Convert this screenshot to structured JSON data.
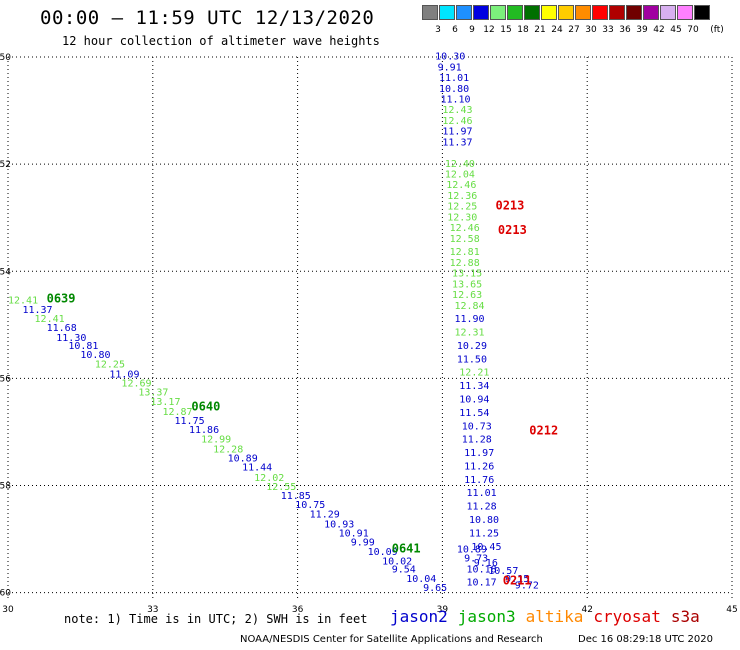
{
  "header": {
    "title": "00:00 – 11:59 UTC 12/13/2020",
    "subtitle": "12 hour collection of altimeter wave heights"
  },
  "color_scale": {
    "unit_label": "(ft)",
    "bins": [
      {
        "label": "3",
        "color": "#808080"
      },
      {
        "label": "6",
        "color": "#00e5ff"
      },
      {
        "label": "9",
        "color": "#1e90ff"
      },
      {
        "label": "12",
        "color": "#0000e0"
      },
      {
        "label": "15",
        "color": "#7cf07c"
      },
      {
        "label": "18",
        "color": "#22bb22"
      },
      {
        "label": "21",
        "color": "#007000"
      },
      {
        "label": "24",
        "color": "#ffff00"
      },
      {
        "label": "27",
        "color": "#ffcc00"
      },
      {
        "label": "30",
        "color": "#ff8c00"
      },
      {
        "label": "33",
        "color": "#ff0000"
      },
      {
        "label": "36",
        "color": "#b00000"
      },
      {
        "label": "39",
        "color": "#700000"
      },
      {
        "label": "42",
        "color": "#a000a0"
      },
      {
        "label": "45",
        "color": "#d8b0f0"
      },
      {
        "label": "70",
        "color": "#ff80ff"
      },
      {
        "label": "",
        "color": "#000000"
      }
    ]
  },
  "chart_data": {
    "type": "scatter",
    "title": "00:00 – 11:59 UTC 12/13/2020",
    "xlabel": "",
    "ylabel": "",
    "xlim": [
      30,
      45
    ],
    "ylim": [
      -60.1,
      -50
    ],
    "x_ticks": [
      30,
      33,
      36,
      39,
      42,
      45
    ],
    "y_ticks": [
      -50,
      -52,
      -54,
      -56,
      -58,
      -60
    ],
    "x_tick_labels": [
      "30",
      "33",
      "36",
      "39",
      "42",
      "45"
    ],
    "y_tick_labels": [
      "-50",
      "-52",
      "-54",
      "-56",
      "-58",
      "-60"
    ],
    "grid": true,
    "colors": {
      "jason2": "#0000cc",
      "jason3": "#00aa00",
      "altika": "#ff8800",
      "cryosat": "#dd0000",
      "s3a": "#aa0000",
      "j3light": "#66dd44",
      "j3time": "#008800"
    },
    "series": [
      {
        "name": "jason2",
        "points": [
          {
            "lon": 38.85,
            "lat": -50.05,
            "value": "10.30",
            "c": "jason2"
          },
          {
            "lon": 38.9,
            "lat": -50.25,
            "value": "9.91",
            "c": "jason2"
          },
          {
            "lon": 38.93,
            "lat": -50.45,
            "value": "11.01",
            "c": "jason2"
          },
          {
            "lon": 38.93,
            "lat": -50.65,
            "value": "10.80",
            "c": "jason2"
          },
          {
            "lon": 38.96,
            "lat": -50.85,
            "value": "11.10",
            "c": "jason2"
          },
          {
            "lon": 39.0,
            "lat": -51.05,
            "value": "12.43",
            "c": "j3light"
          },
          {
            "lon": 39.0,
            "lat": -51.25,
            "value": "12.46",
            "c": "j3light"
          },
          {
            "lon": 39.0,
            "lat": -51.45,
            "value": "11.97",
            "c": "jason2"
          },
          {
            "lon": 39.0,
            "lat": -51.65,
            "value": "11.37",
            "c": "jason2"
          },
          {
            "lon": 39.05,
            "lat": -52.05,
            "value": "12.40",
            "c": "j3light"
          },
          {
            "lon": 39.05,
            "lat": -52.25,
            "value": "12.04",
            "c": "j3light"
          },
          {
            "lon": 39.08,
            "lat": -52.45,
            "value": "12.46",
            "c": "j3light"
          },
          {
            "lon": 39.1,
            "lat": -52.65,
            "value": "12.36",
            "c": "j3light"
          },
          {
            "lon": 39.1,
            "lat": -52.85,
            "value": "12.25",
            "c": "j3light"
          },
          {
            "lon": 39.1,
            "lat": -53.05,
            "value": "12.30",
            "c": "j3light"
          },
          {
            "lon": 39.15,
            "lat": -53.25,
            "value": "12.46",
            "c": "j3light"
          },
          {
            "lon": 39.15,
            "lat": -53.45,
            "value": "12.58",
            "c": "j3light"
          },
          {
            "lon": 39.15,
            "lat": -53.7,
            "value": "12.81",
            "c": "j3light"
          },
          {
            "lon": 39.15,
            "lat": -53.9,
            "value": "12.88",
            "c": "j3light"
          },
          {
            "lon": 39.2,
            "lat": -54.1,
            "value": "13.15",
            "c": "j3light"
          },
          {
            "lon": 39.2,
            "lat": -54.3,
            "value": "13.65",
            "c": "j3light"
          },
          {
            "lon": 39.2,
            "lat": -54.5,
            "value": "12.63",
            "c": "j3light"
          },
          {
            "lon": 39.25,
            "lat": -54.7,
            "value": "12.84",
            "c": "j3light"
          },
          {
            "lon": 39.25,
            "lat": -54.95,
            "value": "11.90",
            "c": "jason2"
          },
          {
            "lon": 39.25,
            "lat": -55.2,
            "value": "12.31",
            "c": "j3light"
          },
          {
            "lon": 39.3,
            "lat": -55.45,
            "value": "10.29",
            "c": "jason2"
          },
          {
            "lon": 39.3,
            "lat": -55.7,
            "value": "11.50",
            "c": "jason2"
          },
          {
            "lon": 39.35,
            "lat": -55.95,
            "value": "12.21",
            "c": "j3light"
          },
          {
            "lon": 39.35,
            "lat": -56.2,
            "value": "11.34",
            "c": "jason2"
          },
          {
            "lon": 39.35,
            "lat": -56.45,
            "value": "10.94",
            "c": "jason2"
          },
          {
            "lon": 39.35,
            "lat": -56.7,
            "value": "11.54",
            "c": "jason2"
          },
          {
            "lon": 39.4,
            "lat": -56.95,
            "value": "10.73",
            "c": "jason2"
          },
          {
            "lon": 39.4,
            "lat": -57.2,
            "value": "11.28",
            "c": "jason2"
          },
          {
            "lon": 39.45,
            "lat": -57.45,
            "value": "11.97",
            "c": "jason2"
          },
          {
            "lon": 39.45,
            "lat": -57.7,
            "value": "11.26",
            "c": "jason2"
          },
          {
            "lon": 39.45,
            "lat": -57.95,
            "value": "11.76",
            "c": "jason2"
          },
          {
            "lon": 39.5,
            "lat": -58.2,
            "value": "11.01",
            "c": "jason2"
          },
          {
            "lon": 39.5,
            "lat": -58.45,
            "value": "11.28",
            "c": "jason2"
          },
          {
            "lon": 39.55,
            "lat": -58.7,
            "value": "10.80",
            "c": "jason2"
          },
          {
            "lon": 39.55,
            "lat": -58.95,
            "value": "11.25",
            "c": "jason2"
          },
          {
            "lon": 39.6,
            "lat": -59.2,
            "value": "10.45",
            "c": "jason2"
          },
          {
            "lon": 39.3,
            "lat": -59.25,
            "value": "10.89",
            "c": "jason2"
          },
          {
            "lon": 39.45,
            "lat": -59.42,
            "value": "9.73",
            "c": "jason2"
          },
          {
            "lon": 39.65,
            "lat": -59.5,
            "value": "9.16",
            "c": "jason2"
          },
          {
            "lon": 39.5,
            "lat": -59.62,
            "value": "10.18",
            "c": "jason2"
          },
          {
            "lon": 39.95,
            "lat": -59.65,
            "value": "10.57",
            "c": "jason2"
          },
          {
            "lon": 40.3,
            "lat": -59.8,
            "value": "9.15",
            "c": "jason2"
          },
          {
            "lon": 39.5,
            "lat": -59.87,
            "value": "10.17",
            "c": "jason2"
          },
          {
            "lon": 40.5,
            "lat": -59.92,
            "value": "9.72",
            "c": "jason2"
          },
          {
            "lon": 30.0,
            "lat": -54.6,
            "value": "12.41",
            "c": "j3light"
          },
          {
            "lon": 30.3,
            "lat": -54.78,
            "value": "11.37",
            "c": "jason2"
          },
          {
            "lon": 30.55,
            "lat": -54.95,
            "value": "12.41",
            "c": "j3light"
          },
          {
            "lon": 30.8,
            "lat": -55.12,
            "value": "11.68",
            "c": "jason2"
          },
          {
            "lon": 31.0,
            "lat": -55.3,
            "value": "11.30",
            "c": "jason2"
          },
          {
            "lon": 31.25,
            "lat": -55.45,
            "value": "10.81",
            "c": "jason2"
          },
          {
            "lon": 31.5,
            "lat": -55.62,
            "value": "10.80",
            "c": "jason2"
          },
          {
            "lon": 31.8,
            "lat": -55.8,
            "value": "12.25",
            "c": "j3light"
          },
          {
            "lon": 32.1,
            "lat": -55.98,
            "value": "11.09",
            "c": "jason2"
          },
          {
            "lon": 32.35,
            "lat": -56.15,
            "value": "12.69",
            "c": "j3light"
          },
          {
            "lon": 32.7,
            "lat": -56.32,
            "value": "13.37",
            "c": "j3light"
          },
          {
            "lon": 32.95,
            "lat": -56.5,
            "value": "13.17",
            "c": "j3light"
          },
          {
            "lon": 33.2,
            "lat": -56.68,
            "value": "12.87",
            "c": "j3light"
          },
          {
            "lon": 33.45,
            "lat": -56.85,
            "value": "11.75",
            "c": "jason2"
          },
          {
            "lon": 33.75,
            "lat": -57.02,
            "value": "11.86",
            "c": "jason2"
          },
          {
            "lon": 34.0,
            "lat": -57.2,
            "value": "12.99",
            "c": "j3light"
          },
          {
            "lon": 34.25,
            "lat": -57.38,
            "value": "12.28",
            "c": "j3light"
          },
          {
            "lon": 34.55,
            "lat": -57.55,
            "value": "10.89",
            "c": "jason2"
          },
          {
            "lon": 34.85,
            "lat": -57.72,
            "value": "11.44",
            "c": "jason2"
          },
          {
            "lon": 35.1,
            "lat": -57.92,
            "value": "12.02",
            "c": "j3light"
          },
          {
            "lon": 35.35,
            "lat": -58.08,
            "value": "12.55",
            "c": "j3light"
          },
          {
            "lon": 35.65,
            "lat": -58.25,
            "value": "11.85",
            "c": "jason2"
          },
          {
            "lon": 35.95,
            "lat": -58.42,
            "value": "10.75",
            "c": "jason2"
          },
          {
            "lon": 36.25,
            "lat": -58.6,
            "value": "11.29",
            "c": "jason2"
          },
          {
            "lon": 36.55,
            "lat": -58.78,
            "value": "10.93",
            "c": "jason2"
          },
          {
            "lon": 36.85,
            "lat": -58.95,
            "value": "10.91",
            "c": "jason2"
          },
          {
            "lon": 37.1,
            "lat": -59.12,
            "value": "9.99",
            "c": "jason2"
          },
          {
            "lon": 37.45,
            "lat": -59.3,
            "value": "10.09",
            "c": "jason2"
          },
          {
            "lon": 37.75,
            "lat": -59.47,
            "value": "10.02",
            "c": "jason2"
          },
          {
            "lon": 37.95,
            "lat": -59.62,
            "value": "9.54",
            "c": "jason2"
          },
          {
            "lon": 38.25,
            "lat": -59.8,
            "value": "10.04",
            "c": "jason2"
          },
          {
            "lon": 38.6,
            "lat": -59.97,
            "value": "9.65",
            "c": "jason2"
          }
        ]
      }
    ],
    "time_labels": [
      {
        "lon": 30.8,
        "lat": -54.58,
        "text": "0639",
        "c": "j3time"
      },
      {
        "lon": 33.8,
        "lat": -56.6,
        "text": "0640",
        "c": "j3time"
      },
      {
        "lon": 37.95,
        "lat": -59.25,
        "text": "0641",
        "c": "j3time"
      },
      {
        "lon": 40.1,
        "lat": -52.85,
        "text": "0213",
        "c": "cryosat"
      },
      {
        "lon": 40.15,
        "lat": -53.3,
        "text": "0213",
        "c": "cryosat"
      },
      {
        "lon": 40.8,
        "lat": -57.05,
        "text": "0212",
        "c": "cryosat"
      },
      {
        "lon": 40.25,
        "lat": -59.85,
        "text": "0211",
        "c": "cryosat"
      }
    ]
  },
  "note": "note: 1) Time is in UTC; 2) SWH is in feet",
  "satellites": [
    {
      "label": "jason2",
      "color": "#0000cc"
    },
    {
      "label": "jason3",
      "color": "#00aa00"
    },
    {
      "label": "altika",
      "color": "#ff8800"
    },
    {
      "label": "cryosat",
      "color": "#dd0000"
    },
    {
      "label": "s3a",
      "color": "#aa0000"
    }
  ],
  "footer": {
    "credit": "NOAA/NESDIS Center for Satellite Applications and Research",
    "timestamp": "Dec 16 08:29:18 UTC 2020"
  }
}
